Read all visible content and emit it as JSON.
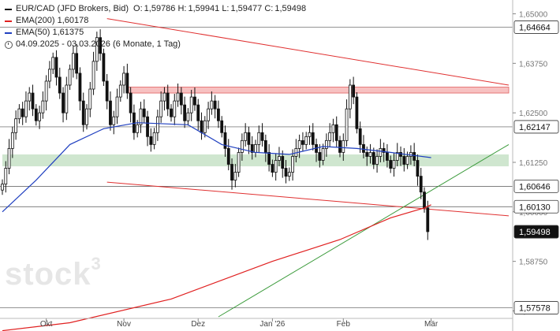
{
  "header": {
    "symbol": "EUR/CAD (JFD Brokers, Bid)",
    "o_label": "O:",
    "o_value": "1,59786",
    "h_label": "H:",
    "h_value": "1,59941",
    "l_label": "L:",
    "l_value": "1,59477",
    "c_label": "C:",
    "c_value": "1,59498",
    "ema200_label": "EMA(200)",
    "ema200_value": "1,60178",
    "ema50_label": "EMA(50)",
    "ema50_value": "1,61375",
    "date_range": "04.09.2025 - 03.03.2026",
    "period": "(6 Monate, 1 Tag)"
  },
  "watermark": {
    "text": "stock",
    "sup": "3"
  },
  "colors": {
    "ema200": "#e02020",
    "ema50": "#2040c0",
    "trend_red": "#e03030",
    "trend_green": "#3a9a3a",
    "zone_green": "#cfe6cf",
    "zone_red": "#f7c1c1",
    "candle": "#111111",
    "grid": "#d6d6d6",
    "label_black": "#111111"
  },
  "chart_data": {
    "type": "line",
    "title": "EUR/CAD (JFD Brokers, Bid)",
    "xlabel": "",
    "ylabel": "",
    "x_ticks": [
      "Okt",
      "Nov",
      "Dez",
      "Jan '26",
      "Feb",
      "Mär"
    ],
    "y_ticks": [
      "1,65000",
      "1,63750",
      "1,62500",
      "1,61250",
      "1,60000",
      "1,58750",
      "1,57500"
    ],
    "y_tick_values": [
      1.65,
      1.6375,
      1.625,
      1.6125,
      1.6,
      1.5875,
      1.575
    ],
    "ylim": [
      1.5735,
      1.6515
    ],
    "price_labels": [
      {
        "value": 1.64664,
        "text": "1,64664",
        "style": "white"
      },
      {
        "value": 1.62147,
        "text": "1,62147",
        "style": "white"
      },
      {
        "value": 1.60646,
        "text": "1,60646",
        "style": "white"
      },
      {
        "value": 1.6013,
        "text": "1,60130",
        "style": "white"
      },
      {
        "value": 1.59498,
        "text": "1,59498",
        "style": "black"
      },
      {
        "value": 1.57578,
        "text": "1,57578",
        "style": "white"
      }
    ],
    "close_series": [
      {
        "name": "EUR/CAD",
        "values": [
          1.607,
          1.611,
          1.616,
          1.62,
          1.6235,
          1.626,
          1.624,
          1.628,
          1.63,
          1.626,
          1.623,
          1.625,
          1.628,
          1.633,
          1.636,
          1.639,
          1.634,
          1.63,
          1.625,
          1.632,
          1.636,
          1.64,
          1.635,
          1.628,
          1.622,
          1.626,
          1.631,
          1.638,
          1.644,
          1.64,
          1.633,
          1.628,
          1.622,
          1.624,
          1.629,
          1.632,
          1.635,
          1.63,
          1.625,
          1.62,
          1.622,
          1.626,
          1.624,
          1.619,
          1.617,
          1.62,
          1.624,
          1.628,
          1.63,
          1.626,
          1.624,
          1.628,
          1.63,
          1.627,
          1.623,
          1.625,
          1.629,
          1.627,
          1.623,
          1.62,
          1.623,
          1.626,
          1.628,
          1.626,
          1.623,
          1.62,
          1.616,
          1.612,
          1.608,
          1.61,
          1.615,
          1.618,
          1.62,
          1.617,
          1.615,
          1.617,
          1.62,
          1.618,
          1.615,
          1.612,
          1.61,
          1.613,
          1.614,
          1.611,
          1.609,
          1.61,
          1.614,
          1.616,
          1.618,
          1.617,
          1.619,
          1.62,
          1.617,
          1.615,
          1.613,
          1.616,
          1.618,
          1.62,
          1.622,
          1.618,
          1.615,
          1.618,
          1.626,
          1.632,
          1.629,
          1.621,
          1.617,
          1.615,
          1.614,
          1.615,
          1.612,
          1.614,
          1.616,
          1.615,
          1.613,
          1.611,
          1.613,
          1.615,
          1.614,
          1.612,
          1.614,
          1.615,
          1.613,
          1.609,
          1.605,
          1.601,
          1.595
        ]
      }
    ],
    "ema200": [
      [
        0,
        1.57
      ],
      [
        20,
        1.572
      ],
      [
        50,
        1.578
      ],
      [
        80,
        1.5875
      ],
      [
        100,
        1.593
      ],
      [
        115,
        1.5985
      ],
      [
        125,
        1.601
      ],
      [
        127,
        1.6018
      ]
    ],
    "ema50": [
      [
        0,
        1.6
      ],
      [
        10,
        1.608
      ],
      [
        20,
        1.617
      ],
      [
        30,
        1.621
      ],
      [
        40,
        1.6225
      ],
      [
        55,
        1.622
      ],
      [
        65,
        1.617
      ],
      [
        75,
        1.615
      ],
      [
        85,
        1.6145
      ],
      [
        95,
        1.6165
      ],
      [
        105,
        1.616
      ],
      [
        115,
        1.615
      ],
      [
        127,
        1.6137
      ]
    ],
    "zones": [
      {
        "color": "red",
        "low": 1.63,
        "high": 1.6315,
        "start": 37,
        "end": 150
      },
      {
        "color": "green",
        "low": 1.6115,
        "high": 1.6145,
        "start": 0,
        "end": 150
      }
    ],
    "trendlines": [
      {
        "color": "red",
        "points": [
          [
            31,
            1.6488
          ],
          [
            150,
            1.632
          ]
        ]
      },
      {
        "color": "red",
        "points": [
          [
            31,
            1.6075
          ],
          [
            150,
            1.599
          ]
        ]
      },
      {
        "color": "green",
        "points": [
          [
            64,
            1.5735
          ],
          [
            150,
            1.617
          ]
        ]
      }
    ],
    "hlines": [
      1.64664,
      1.62147,
      1.60646,
      1.6013,
      1.57578
    ],
    "grid": false,
    "legend_position": "top-left"
  }
}
